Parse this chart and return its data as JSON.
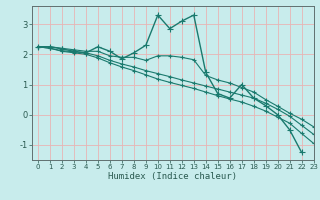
{
  "xlabel": "Humidex (Indice chaleur)",
  "bg_color": "#c8ecec",
  "line_color": "#1a7a6e",
  "grid_color": "#e8b4b4",
  "xlim": [
    -0.5,
    23
  ],
  "ylim": [
    -1.5,
    3.6
  ],
  "yticks": [
    -1,
    0,
    1,
    2,
    3
  ],
  "xticks": [
    0,
    1,
    2,
    3,
    4,
    5,
    6,
    7,
    8,
    9,
    10,
    11,
    12,
    13,
    14,
    15,
    16,
    17,
    18,
    19,
    20,
    21,
    22,
    23
  ],
  "line1_x": [
    0,
    1,
    2,
    3,
    4,
    5,
    6,
    7,
    8,
    9,
    10,
    11,
    12,
    13,
    14,
    15,
    16,
    17,
    18,
    19,
    20,
    21,
    22
  ],
  "line1_y": [
    2.25,
    2.25,
    2.18,
    2.1,
    2.05,
    2.25,
    2.1,
    1.85,
    2.05,
    2.3,
    3.3,
    2.85,
    3.1,
    3.3,
    1.4,
    0.7,
    0.55,
    1.0,
    0.55,
    0.3,
    0.0,
    -0.5,
    -1.25
  ],
  "line2_x": [
    0,
    1,
    2,
    3,
    4,
    5,
    6,
    7,
    8,
    9,
    10,
    11,
    12,
    13,
    14,
    15,
    16,
    17,
    18,
    19,
    20,
    21,
    22,
    23
  ],
  "line2_y": [
    2.25,
    2.25,
    2.2,
    2.15,
    2.1,
    2.1,
    1.95,
    1.9,
    1.9,
    1.8,
    1.95,
    1.95,
    1.9,
    1.82,
    1.3,
    1.15,
    1.05,
    0.9,
    0.75,
    0.5,
    0.28,
    0.05,
    -0.15,
    -0.4
  ],
  "line3_x": [
    0,
    1,
    2,
    3,
    4,
    5,
    6,
    7,
    8,
    9,
    10,
    11,
    12,
    13,
    14,
    15,
    16,
    17,
    18,
    19,
    20,
    21,
    22,
    23
  ],
  "line3_y": [
    2.25,
    2.2,
    2.12,
    2.08,
    2.05,
    1.95,
    1.8,
    1.68,
    1.58,
    1.46,
    1.36,
    1.26,
    1.15,
    1.05,
    0.95,
    0.85,
    0.75,
    0.65,
    0.55,
    0.38,
    0.18,
    -0.05,
    -0.35,
    -0.65
  ],
  "line4_x": [
    0,
    1,
    2,
    3,
    4,
    5,
    6,
    7,
    8,
    9,
    10,
    11,
    12,
    13,
    14,
    15,
    16,
    17,
    18,
    19,
    20,
    21,
    22,
    23
  ],
  "line4_y": [
    2.25,
    2.2,
    2.1,
    2.05,
    2.0,
    1.88,
    1.72,
    1.58,
    1.46,
    1.32,
    1.18,
    1.07,
    0.97,
    0.87,
    0.75,
    0.63,
    0.52,
    0.42,
    0.28,
    0.12,
    -0.08,
    -0.28,
    -0.62,
    -0.95
  ]
}
